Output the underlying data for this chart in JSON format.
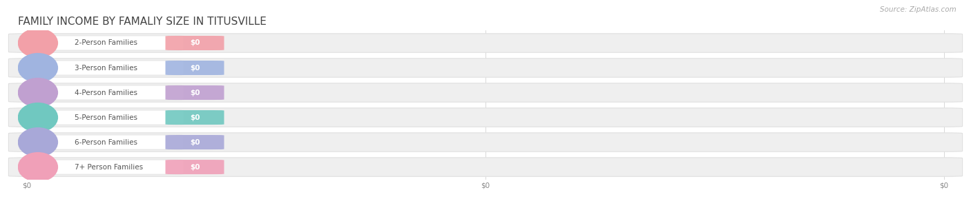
{
  "title": "FAMILY INCOME BY FAMALIY SIZE IN TITUSVILLE",
  "source": "Source: ZipAtlas.com",
  "categories": [
    "2-Person Families",
    "3-Person Families",
    "4-Person Families",
    "5-Person Families",
    "6-Person Families",
    "7+ Person Families"
  ],
  "values": [
    0,
    0,
    0,
    0,
    0,
    0
  ],
  "bar_colors": [
    "#f2a0a8",
    "#a0b4e0",
    "#c0a0d0",
    "#70c8c0",
    "#a8a8d8",
    "#f0a0b8"
  ],
  "title_color": "#444444",
  "label_color": "#555555",
  "source_color": "#aaaaaa",
  "row_pill_color": "#efefef",
  "row_pill_edge": "#e0e0e0",
  "background_color": "#ffffff",
  "grid_color": "#d8d8d8",
  "title_fontsize": 11,
  "label_fontsize": 7.5,
  "value_fontsize": 7.5,
  "source_fontsize": 7.5,
  "tick_fontsize": 7.5,
  "tick_color": "#888888",
  "xlim_left": -0.01,
  "xlim_right": 1.01,
  "xtick_positions": [
    0.0,
    0.5,
    1.0
  ],
  "xtick_labels": [
    "$0",
    "$0",
    "$0"
  ]
}
